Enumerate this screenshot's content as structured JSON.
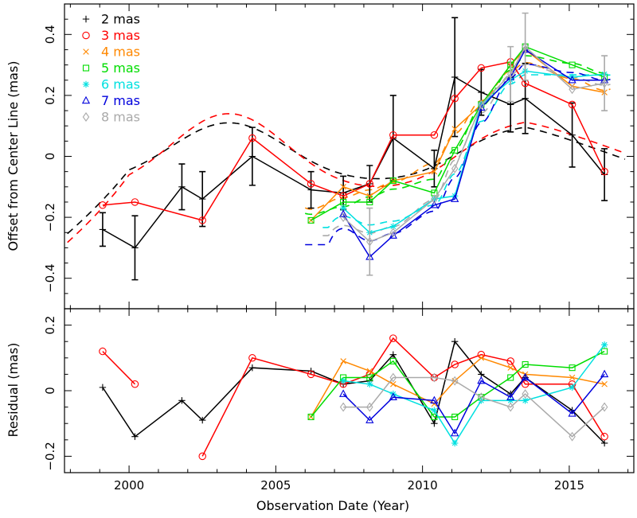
{
  "chart_data": [
    {
      "type": "line",
      "panel": "top",
      "xlabel": "Observation Date (Year)",
      "ylabel": "Offset from Center Line (mas)",
      "xlim": [
        1997.8,
        2017.2
      ],
      "ylim": [
        -0.5,
        0.5
      ],
      "xticks": [
        2000,
        2005,
        2010,
        2015
      ],
      "xtick_labels": [
        "2000",
        "2005",
        "2010",
        "2015"
      ],
      "yticks": [
        -0.4,
        -0.2,
        0,
        0.2,
        0.4
      ],
      "ytick_labels": [
        "−0.4",
        "−0.2",
        "0",
        "0.2",
        "0.4"
      ],
      "legend_position": "top-left",
      "series": [
        {
          "name": "2 mas",
          "color": "#000000",
          "marker": "plus",
          "x": [
            1999.1,
            2000.2,
            2001.8,
            2002.5,
            2004.2,
            2006.2,
            2007.3,
            2008.2,
            2009.0,
            2010.4,
            2011.1,
            2012.0,
            2013.0,
            2013.5,
            2015.1,
            2016.2
          ],
          "y": [
            -0.24,
            -0.3,
            -0.1,
            -0.14,
            0.0,
            -0.11,
            -0.12,
            -0.09,
            0.06,
            -0.04,
            0.26,
            0.21,
            0.17,
            0.19,
            0.07,
            -0.06
          ],
          "yerr": [
            0.055,
            0.105,
            0.075,
            0.09,
            0.095,
            0.06,
            0.055,
            0.06,
            0.14,
            0.06,
            0.195,
            0.075,
            0.09,
            0.115,
            0.105,
            0.085
          ]
        },
        {
          "name": "3 mas",
          "color": "#ff0000",
          "marker": "circle",
          "x": [
            1999.1,
            2000.2,
            2002.5,
            2004.2,
            2006.2,
            2007.3,
            2008.2,
            2009.0,
            2010.4,
            2011.1,
            2012.0,
            2013.0,
            2013.5,
            2015.1,
            2016.2
          ],
          "y": [
            -0.16,
            -0.15,
            -0.21,
            0.06,
            -0.09,
            -0.13,
            -0.09,
            0.07,
            0.07,
            0.19,
            0.29,
            0.31,
            0.24,
            0.17,
            -0.05
          ]
        },
        {
          "name": "4 mas",
          "color": "#ff8800",
          "marker": "cross",
          "x": [
            2006.2,
            2007.3,
            2008.2,
            2009.0,
            2010.4,
            2011.1,
            2012.0,
            2013.0,
            2013.5,
            2015.1,
            2016.2
          ],
          "y": [
            -0.21,
            -0.1,
            -0.13,
            -0.08,
            -0.05,
            0.09,
            0.17,
            0.3,
            0.35,
            0.23,
            0.21
          ]
        },
        {
          "name": "5 mas",
          "color": "#00dd00",
          "marker": "square",
          "x": [
            2006.2,
            2007.3,
            2008.2,
            2009.0,
            2010.4,
            2011.1,
            2012.0,
            2013.0,
            2013.5,
            2015.1,
            2016.2
          ],
          "y": [
            -0.21,
            -0.15,
            -0.15,
            -0.08,
            -0.12,
            0.02,
            0.17,
            0.3,
            0.36,
            0.3,
            0.26
          ]
        },
        {
          "name": "6 mas",
          "color": "#00e0e0",
          "marker": "star",
          "x": [
            2007.3,
            2008.2,
            2009.0,
            2010.4,
            2011.1,
            2012.0,
            2013.0,
            2013.5,
            2015.1,
            2016.2
          ],
          "y": [
            -0.17,
            -0.25,
            -0.23,
            -0.14,
            -0.13,
            0.17,
            0.25,
            0.28,
            0.26,
            0.27
          ]
        },
        {
          "name": "7 mas",
          "color": "#0000dd",
          "marker": "triangle",
          "x": [
            2007.3,
            2008.2,
            2009.0,
            2010.4,
            2011.1,
            2012.0,
            2013.0,
            2013.5,
            2015.1,
            2016.2
          ],
          "y": [
            -0.19,
            -0.33,
            -0.26,
            -0.16,
            -0.14,
            0.16,
            0.26,
            0.35,
            0.25,
            0.25
          ]
        },
        {
          "name": "8 mas",
          "color": "#aaaaaa",
          "marker": "diamond",
          "x": [
            2007.3,
            2008.2,
            2009.0,
            2010.4,
            2011.1,
            2012.0,
            2013.0,
            2013.5,
            2015.1,
            2016.2
          ],
          "y": [
            -0.2,
            -0.28,
            -0.25,
            -0.14,
            -0.04,
            0.17,
            0.27,
            0.36,
            0.22,
            0.24
          ],
          "yerr": [
            null,
            0.11,
            null,
            null,
            null,
            null,
            0.09,
            0.11,
            null,
            0.09
          ]
        }
      ],
      "model_curves": [
        {
          "name": "2 mas",
          "color": "#000000",
          "start": 1997.9,
          "end": 2016.9,
          "p": [
            -0.004375,
            0.22,
            0.0,
            -0.04
          ],
          "x0": 2003.0,
          "k": 0.6,
          "sig_from": -0.04,
          "sig_to": 0.16,
          "sig_mid": 2011.0,
          "sig_w": 0.9,
          "tail_slope": -0.028
        },
        {
          "name": "3 mas",
          "color": "#ff0000",
          "start": 1997.9,
          "end": 2016.9,
          "amp": 0.3
        },
        {
          "name": "4 mas",
          "color": "#ff8800",
          "start": 2006.0,
          "end": 2016.4
        },
        {
          "name": "5 mas",
          "color": "#00dd00",
          "start": 2006.0,
          "end": 2016.4
        },
        {
          "name": "6 mas",
          "color": "#00e0e0",
          "start": 2006.6,
          "end": 2016.4
        },
        {
          "name": "7 mas",
          "color": "#0000dd",
          "start": 2006.0,
          "end": 2016.4
        },
        {
          "name": "8 mas",
          "color": "#aaaaaa",
          "start": 2006.6,
          "end": 2016.4
        }
      ]
    },
    {
      "type": "line",
      "panel": "bottom",
      "xlabel": "Observation Date (Year)",
      "ylabel": "Residual (mas)",
      "xlim": [
        1997.8,
        2017.2
      ],
      "ylim": [
        -0.25,
        0.25
      ],
      "xticks": [
        2000,
        2005,
        2010,
        2015
      ],
      "xtick_labels": [
        "2000",
        "2005",
        "2010",
        "2015"
      ],
      "yticks": [
        -0.2,
        0,
        0.2
      ],
      "ytick_labels": [
        "−0.2",
        "0",
        "0.2"
      ],
      "series": [
        {
          "name": "2 mas",
          "color": "#000000",
          "marker": "plus",
          "segments": [
            {
              "x": [
                1999.1,
                2000.2,
                2001.8,
                2002.5,
                2004.2,
                2006.2,
                2007.3,
                2008.2,
                2009.0,
                2010.4,
                2011.1,
                2012.0,
                2013.0,
                2013.5,
                2015.1,
                2016.2
              ],
              "y": [
                0.01,
                -0.14,
                -0.03,
                -0.09,
                0.07,
                0.06,
                0.02,
                0.03,
                0.11,
                -0.1,
                0.15,
                0.05,
                -0.01,
                0.04,
                -0.06,
                -0.16
              ]
            }
          ]
        },
        {
          "name": "3 mas",
          "color": "#ff0000",
          "marker": "circle",
          "segments": [
            {
              "x": [
                1999.1,
                2000.2
              ],
              "y": [
                0.12,
                0.02
              ]
            },
            {
              "x": [
                2002.5,
                2004.2,
                2006.2,
                2007.3,
                2008.2,
                2009.0,
                2010.4,
                2011.1,
                2012.0,
                2013.0,
                2013.5,
                2015.1,
                2016.2
              ],
              "y": [
                -0.2,
                0.1,
                0.05,
                0.02,
                0.05,
                0.16,
                0.04,
                0.08,
                0.11,
                0.09,
                0.02,
                0.02,
                -0.14
              ]
            }
          ]
        },
        {
          "name": "4 mas",
          "color": "#ff8800",
          "marker": "cross",
          "segments": [
            {
              "x": [
                2006.2,
                2007.3,
                2008.2,
                2009.0,
                2010.4,
                2011.1,
                2012.0,
                2013.0,
                2013.5,
                2015.1,
                2016.2
              ],
              "y": [
                -0.08,
                0.09,
                0.06,
                0.02,
                -0.04,
                0.03,
                0.1,
                0.07,
                0.05,
                0.04,
                0.02
              ]
            }
          ]
        },
        {
          "name": "5 mas",
          "color": "#00dd00",
          "marker": "square",
          "segments": [
            {
              "x": [
                2006.2,
                2007.3,
                2008.2,
                2009.0,
                2010.4,
                2011.1,
                2012.0,
                2013.0,
                2013.5,
                2015.1,
                2016.2
              ],
              "y": [
                -0.08,
                0.04,
                0.04,
                0.09,
                -0.08,
                -0.08,
                -0.02,
                0.04,
                0.08,
                0.07,
                0.12
              ]
            }
          ]
        },
        {
          "name": "6 mas",
          "color": "#00e0e0",
          "marker": "star",
          "segments": [
            {
              "x": [
                2007.3,
                2008.2,
                2009.0,
                2010.4,
                2011.1,
                2012.0,
                2013.0,
                2013.5,
                2015.1,
                2016.2
              ],
              "y": [
                0.03,
                0.02,
                -0.01,
                -0.06,
                -0.16,
                -0.03,
                -0.03,
                -0.03,
                0.01,
                0.14
              ]
            }
          ]
        },
        {
          "name": "7 mas",
          "color": "#0000dd",
          "marker": "triangle",
          "segments": [
            {
              "x": [
                2007.3,
                2008.2,
                2009.0,
                2010.4,
                2011.1,
                2012.0,
                2013.0,
                2013.5,
                2015.1,
                2016.2
              ],
              "y": [
                -0.01,
                -0.09,
                -0.02,
                -0.03,
                -0.13,
                0.03,
                -0.02,
                0.04,
                -0.07,
                0.05
              ]
            }
          ]
        },
        {
          "name": "8 mas",
          "color": "#aaaaaa",
          "marker": "diamond",
          "segments": [
            {
              "x": [
                2007.3,
                2008.2,
                2009.0,
                2010.4,
                2011.1,
                2012.0,
                2013.0,
                2013.5,
                2015.1,
                2016.2
              ],
              "y": [
                -0.05,
                -0.05,
                0.04,
                0.04,
                0.03,
                -0.02,
                -0.05,
                -0.01,
                -0.14,
                -0.05
              ]
            }
          ]
        }
      ]
    }
  ]
}
